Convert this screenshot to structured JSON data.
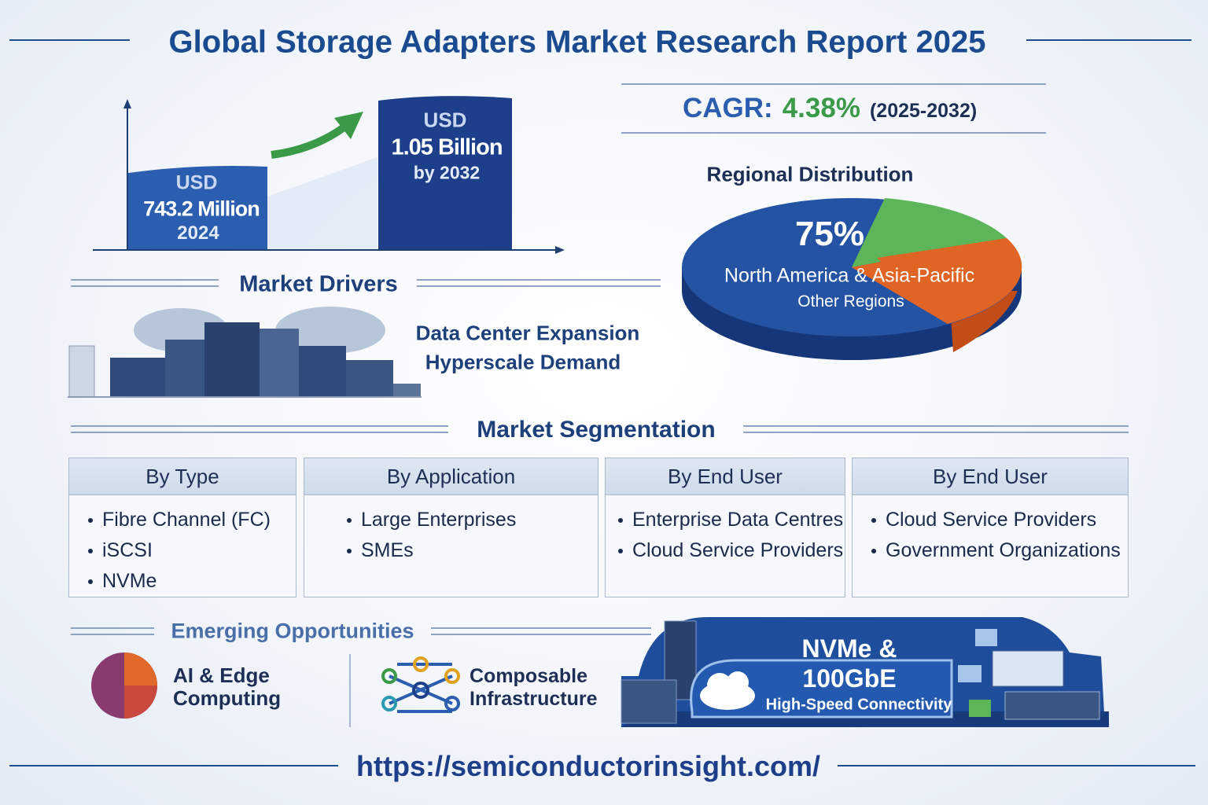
{
  "header": {
    "title": "Global Storage Adapters Market Research Report 2025"
  },
  "market_size": {
    "start": {
      "currency": "USD",
      "value": "743.2 Million",
      "year": "2024"
    },
    "end": {
      "currency": "USD",
      "value": "1.05 Billion",
      "year": "by 2032"
    }
  },
  "cagr": {
    "label": "CAGR:",
    "value": "4.38%",
    "period": "(2025-2032)"
  },
  "regional": {
    "title": "Regional Distribution",
    "percent": "75%",
    "primary": "North America & Asia-Pacific",
    "secondary": "Other Regions"
  },
  "drivers": {
    "title": "Market Drivers",
    "items": [
      "Data Center Expansion",
      "Hyperscale Demand"
    ]
  },
  "segmentation": {
    "title": "Market Segmentation",
    "columns": [
      {
        "heading": "By Type",
        "items": [
          "Fibre Channel (FC)",
          "iSCSI",
          "NVMe"
        ]
      },
      {
        "heading": "By Application",
        "items": [
          "Large Enterprises",
          "SMEs"
        ]
      },
      {
        "heading": "By End User",
        "items": [
          "Enterprise Data Centres",
          "Cloud Service Providers"
        ]
      },
      {
        "heading": "By End User",
        "items": [
          "Cloud Service Providers",
          "Government Organizations"
        ]
      }
    ]
  },
  "opportunities": {
    "title": "Emerging Opportunities",
    "items": [
      "AI & Edge Computing",
      "Composable Infrastructure"
    ]
  },
  "connectivity": {
    "title": "NVMe & 100GbE",
    "subtitle": "High-Speed Connectivity"
  },
  "footer": {
    "url": "https://semiconductorinsight.com/"
  }
}
